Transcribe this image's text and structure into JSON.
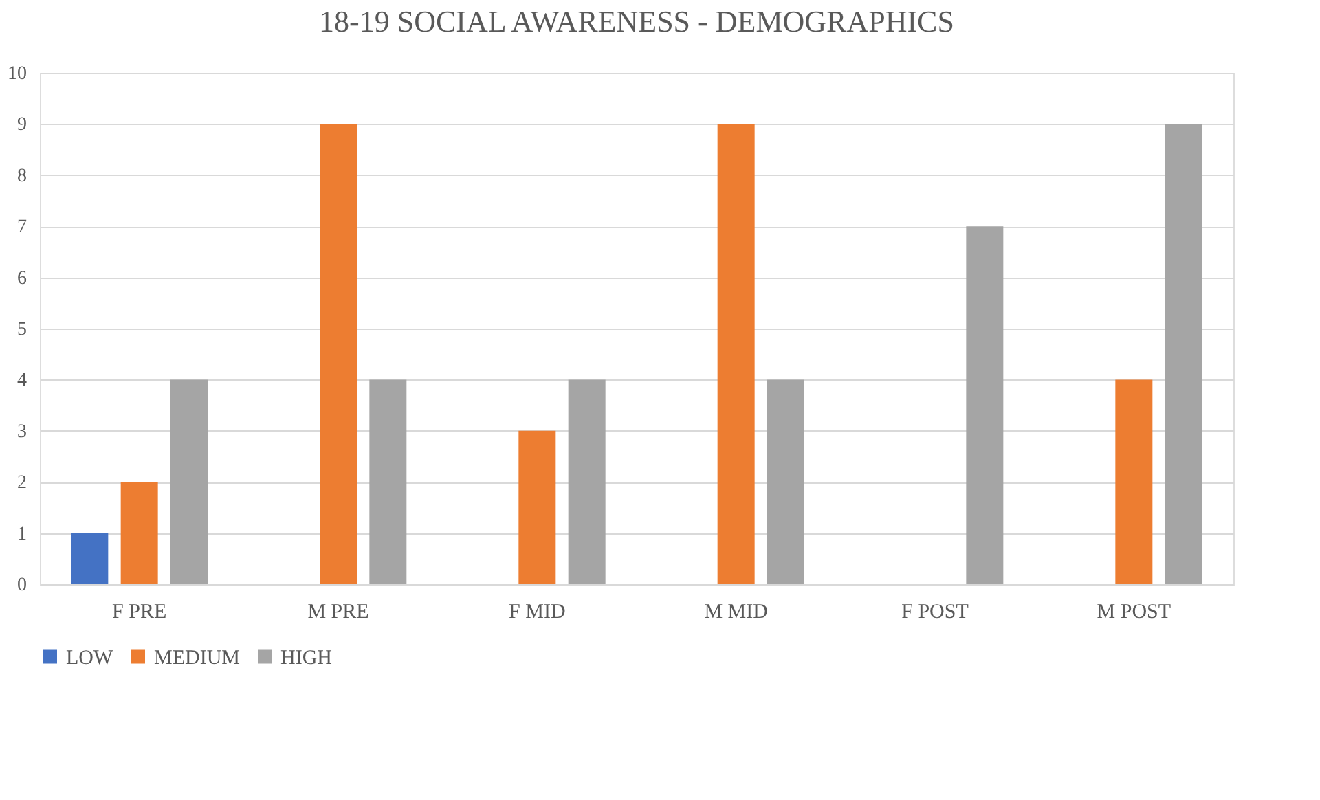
{
  "chart_data": {
    "type": "bar",
    "title": "18-19  SOCIAL AWARENESS - DEMOGRAPHICS",
    "categories": [
      "F PRE",
      "M PRE",
      "F MID",
      "M MID",
      "F POST",
      "M POST"
    ],
    "series": [
      {
        "name": "LOW",
        "color": "#4472c4",
        "values": [
          1,
          0,
          0,
          0,
          0,
          0
        ]
      },
      {
        "name": "MEDIUM",
        "color": "#ed7d31",
        "values": [
          2,
          9,
          3,
          9,
          0,
          4
        ]
      },
      {
        "name": "HIGH",
        "color": "#a5a5a5",
        "values": [
          4,
          4,
          4,
          4,
          7,
          9
        ]
      }
    ],
    "ylim": [
      0,
      10
    ],
    "yticks": [
      0,
      1,
      2,
      3,
      4,
      5,
      6,
      7,
      8,
      9,
      10
    ],
    "grid": "y",
    "legend": "bottom"
  }
}
